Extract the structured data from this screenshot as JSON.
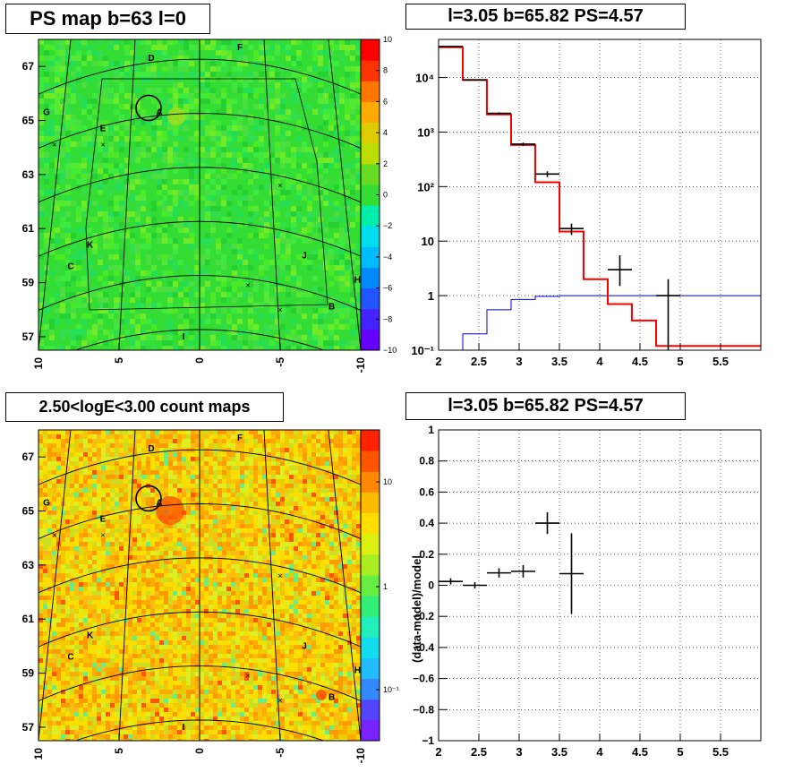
{
  "panels": {
    "ps_map": {
      "title": "PS map b=63 l=0",
      "colorbar_ticks": [
        "10",
        "8",
        "6",
        "4",
        "2",
        "0",
        "−2",
        "−4",
        "−6",
        "−8",
        "−10"
      ],
      "y_ticks": [
        "67",
        "65",
        "63",
        "61",
        "59",
        "57"
      ],
      "x_ticks": [
        "10",
        "5",
        "0",
        "-5",
        "-10"
      ]
    },
    "count_map": {
      "title": "2.50<logE<3.00 count maps",
      "colorbar_ticks": [
        "10",
        "1",
        "10⁻¹"
      ],
      "y_ticks": [
        "67",
        "65",
        "63",
        "61",
        "59",
        "57"
      ],
      "x_ticks": [
        "10",
        "5",
        "0",
        "-5",
        "-10"
      ]
    },
    "spectrum": {
      "title": "l=3.05 b=65.82 PS=4.57",
      "x_ticks": [
        "2",
        "2.5",
        "3",
        "3.5",
        "4",
        "4.5",
        "5",
        "5.5"
      ],
      "y_ticks": [
        "10⁴",
        "10³",
        "10²",
        "10",
        "1",
        "10⁻¹"
      ]
    },
    "residual": {
      "title": "l=3.05 b=65.82 PS=4.57",
      "ylabel": "(data-model)/model",
      "x_ticks": [
        "2",
        "2.5",
        "3",
        "3.5",
        "4",
        "4.5",
        "5",
        "5.5"
      ],
      "y_ticks": [
        "1",
        "0.8",
        "0.6",
        "0.4",
        "0.2",
        "0",
        "−0.2",
        "−0.4",
        "−0.6",
        "−0.8",
        "−1"
      ]
    }
  },
  "source_labels": [
    "A",
    "B",
    "C",
    "D",
    "E",
    "F",
    "G",
    "H",
    "I",
    "J",
    "K"
  ],
  "colors": {
    "model_line": "#ff0000",
    "background_line": "#0000cc",
    "data": "#000000",
    "map_base": "#33dd33"
  },
  "chart_data": [
    {
      "type": "heatmap",
      "title": "PS map b=63 l=0",
      "xlabel": "",
      "ylabel": "",
      "x_range": [
        10,
        -10
      ],
      "y_range": [
        56.5,
        68
      ],
      "colorbar_range": [
        -10,
        10
      ],
      "sources": [
        {
          "label": "A",
          "l": 2.5,
          "b": 65.2
        },
        {
          "label": "B",
          "l": -8.2,
          "b": 58.0
        },
        {
          "label": "C",
          "l": 8.0,
          "b": 59.5
        },
        {
          "label": "D",
          "l": 3.0,
          "b": 67.2
        },
        {
          "label": "E",
          "l": 6.0,
          "b": 64.6
        },
        {
          "label": "F",
          "l": -2.5,
          "b": 67.6
        },
        {
          "label": "G",
          "l": 9.5,
          "b": 65.2
        },
        {
          "label": "H",
          "l": -9.8,
          "b": 59.0
        },
        {
          "label": "I",
          "l": 1.0,
          "b": 56.9
        },
        {
          "label": "J",
          "l": -6.5,
          "b": 59.9
        },
        {
          "label": "K",
          "l": 6.8,
          "b": 60.3
        }
      ]
    },
    {
      "type": "heatmap",
      "title": "2.50<logE<3.00 count maps",
      "xlabel": "",
      "ylabel": "",
      "x_range": [
        10,
        -10
      ],
      "y_range": [
        56.5,
        68
      ],
      "colorbar_scale": "log",
      "colorbar_range": [
        0.05,
        30
      ]
    },
    {
      "type": "line",
      "title": "l=3.05 b=65.82 PS=4.57",
      "xlabel": "",
      "ylabel": "",
      "xlim": [
        2,
        6
      ],
      "ylim": [
        0.1,
        50000
      ],
      "yscale": "log",
      "grid": true,
      "bin_edges": [
        2.0,
        2.3,
        2.6,
        2.9,
        3.2,
        3.5,
        3.8,
        4.1,
        4.4,
        4.7,
        5.0,
        5.3,
        5.6,
        6.0
      ],
      "series": [
        {
          "values": [
            36000,
            9000,
            2100,
            580,
            120,
            15,
            2,
            0.7,
            0.35,
            0.12,
            0.12,
            0.12,
            0.12
          ]
        },
        {
          "values": [
            0.1,
            0.2,
            0.55,
            0.85,
            0.97,
            1.0,
            1.0,
            1.0,
            1.0,
            1.0,
            1.0,
            1.0,
            1.0
          ]
        },
        {
          "x": [
            2.15,
            2.45,
            2.75,
            3.05,
            3.35,
            3.65,
            4.25,
            4.85
          ],
          "y": [
            37000,
            9000,
            2200,
            600,
            170,
            17,
            3,
            1
          ],
          "y_low": [
            36000,
            8800,
            2100,
            560,
            150,
            13,
            1.5,
            0.1
          ],
          "y_high": [
            38000,
            9200,
            2300,
            640,
            190,
            21,
            5.5,
            2
          ]
        }
      ]
    },
    {
      "type": "scatter",
      "title": "l=3.05 b=65.82 PS=4.57",
      "xlabel": "",
      "ylabel": "(data-model)/model",
      "xlim": [
        2,
        6
      ],
      "ylim": [
        -1,
        1
      ],
      "grid": true,
      "series": [
        {
          "x": [
            2.15,
            2.45,
            2.75,
            3.05,
            3.35,
            3.65
          ],
          "y": [
            0.025,
            0.0,
            0.08,
            0.09,
            0.4,
            0.075
          ],
          "y_err": [
            0.02,
            0.02,
            0.03,
            0.04,
            0.07,
            0.26
          ]
        }
      ]
    }
  ]
}
